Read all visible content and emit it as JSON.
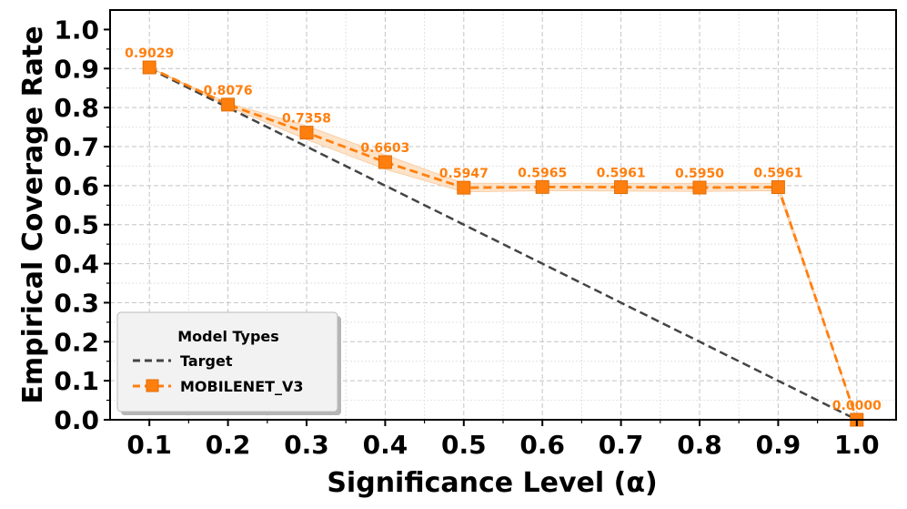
{
  "chart_data": {
    "type": "line",
    "xlabel": "Significance Level (α)",
    "ylabel": "Empirical Coverage Rate",
    "xlim": [
      0.05,
      1.05
    ],
    "ylim": [
      0.0,
      1.05
    ],
    "x_ticks": [
      "0.1",
      "0.2",
      "0.3",
      "0.4",
      "0.5",
      "0.6",
      "0.7",
      "0.8",
      "0.9",
      "1.0"
    ],
    "y_ticks": [
      "0.0",
      "0.1",
      "0.2",
      "0.3",
      "0.4",
      "0.5",
      "0.6",
      "0.7",
      "0.8",
      "0.9",
      "1.0"
    ],
    "grid": true,
    "legend": {
      "title": "Model Types",
      "position": "lower-left",
      "entries": [
        "Target",
        "MOBILENET_V3"
      ]
    },
    "series": [
      {
        "name": "Target",
        "style": "dashed",
        "color": "#444444",
        "x": [
          0.1,
          1.0
        ],
        "y": [
          0.9,
          0.0
        ]
      },
      {
        "name": "MOBILENET_V3",
        "style": "dashed-square-markers",
        "color": "#ff7f0e",
        "band_color": "#fdd9b5",
        "x": [
          0.1,
          0.2,
          0.3,
          0.4,
          0.5,
          0.6,
          0.7,
          0.8,
          0.9,
          1.0
        ],
        "y": [
          0.9029,
          0.8076,
          0.7358,
          0.6603,
          0.5947,
          0.5965,
          0.5961,
          0.595,
          0.5961,
          0.0
        ],
        "band_lower": [
          0.9029,
          0.803,
          0.718,
          0.642,
          0.584,
          0.587,
          0.586,
          0.585,
          0.587,
          0.0
        ],
        "band_upper": [
          0.9029,
          0.812,
          0.753,
          0.679,
          0.606,
          0.606,
          0.606,
          0.606,
          0.606,
          0.0
        ],
        "labels": [
          "0.9029",
          "0.8076",
          "0.7358",
          "0.6603",
          "0.5947",
          "0.5965",
          "0.5961",
          "0.5950",
          "0.5961",
          "0.0000"
        ]
      }
    ]
  }
}
